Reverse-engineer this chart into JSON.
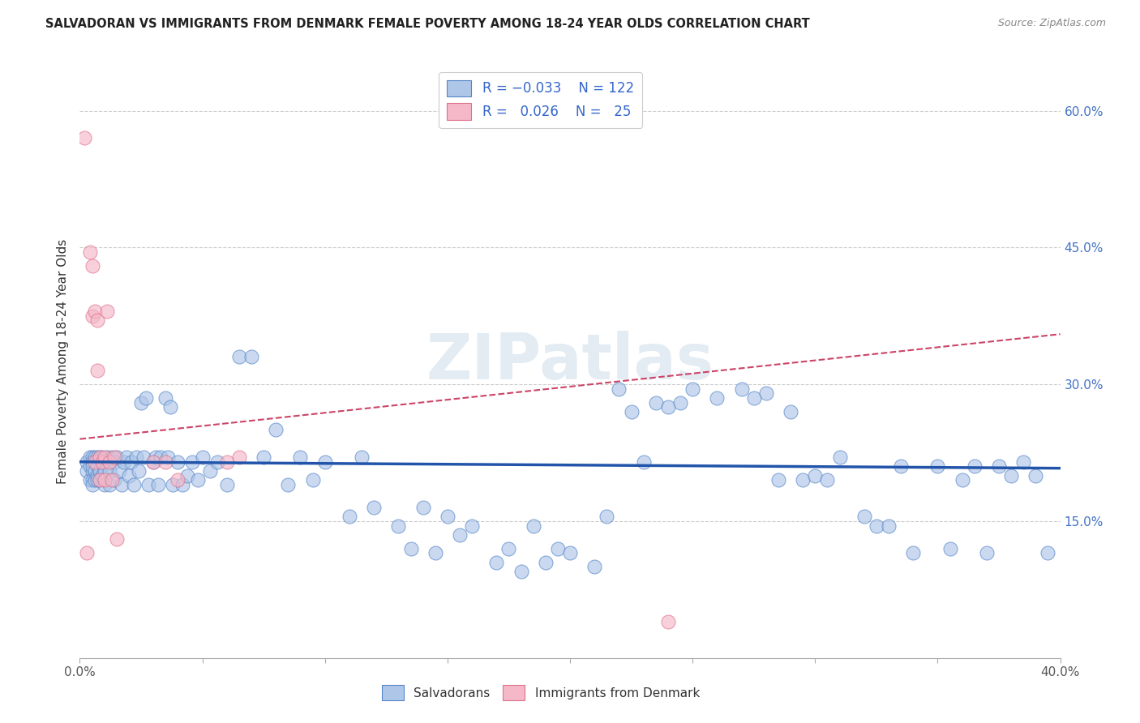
{
  "title": "SALVADORAN VS IMMIGRANTS FROM DENMARK FEMALE POVERTY AMONG 18-24 YEAR OLDS CORRELATION CHART",
  "source": "Source: ZipAtlas.com",
  "ylabel": "Female Poverty Among 18-24 Year Olds",
  "right_yticks": [
    "60.0%",
    "45.0%",
    "30.0%",
    "15.0%"
  ],
  "right_ytick_vals": [
    0.6,
    0.45,
    0.3,
    0.15
  ],
  "legend_blue_R": "-0.033",
  "legend_blue_N": "122",
  "legend_pink_R": "0.026",
  "legend_pink_N": "25",
  "legend_label_blue": "Salvadorans",
  "legend_label_pink": "Immigrants from Denmark",
  "blue_color": "#aec6e8",
  "pink_color": "#f4b8c8",
  "blue_edge_color": "#5585c8",
  "pink_edge_color": "#e0708a",
  "blue_line_color": "#2255aa",
  "pink_line_color": "#cc4466",
  "watermark": "ZIPatlas",
  "xlim": [
    0.0,
    0.4
  ],
  "ylim": [
    0.0,
    0.65
  ],
  "blue_scatter_x": [
    0.003,
    0.003,
    0.004,
    0.004,
    0.004,
    0.005,
    0.005,
    0.005,
    0.005,
    0.005,
    0.005,
    0.006,
    0.006,
    0.006,
    0.007,
    0.007,
    0.007,
    0.007,
    0.008,
    0.008,
    0.008,
    0.009,
    0.009,
    0.01,
    0.01,
    0.01,
    0.011,
    0.012,
    0.012,
    0.013,
    0.014,
    0.014,
    0.015,
    0.016,
    0.017,
    0.018,
    0.019,
    0.02,
    0.021,
    0.022,
    0.023,
    0.024,
    0.025,
    0.026,
    0.027,
    0.028,
    0.03,
    0.031,
    0.032,
    0.033,
    0.035,
    0.036,
    0.037,
    0.038,
    0.04,
    0.042,
    0.044,
    0.046,
    0.048,
    0.05,
    0.053,
    0.056,
    0.06,
    0.065,
    0.07,
    0.075,
    0.08,
    0.085,
    0.09,
    0.095,
    0.1,
    0.11,
    0.115,
    0.12,
    0.13,
    0.135,
    0.14,
    0.145,
    0.15,
    0.155,
    0.16,
    0.17,
    0.175,
    0.18,
    0.185,
    0.19,
    0.195,
    0.2,
    0.21,
    0.215,
    0.22,
    0.225,
    0.23,
    0.235,
    0.24,
    0.245,
    0.25,
    0.26,
    0.27,
    0.275,
    0.28,
    0.285,
    0.29,
    0.295,
    0.3,
    0.305,
    0.31,
    0.32,
    0.325,
    0.33,
    0.335,
    0.34,
    0.35,
    0.355,
    0.36,
    0.365,
    0.37,
    0.375,
    0.38,
    0.385,
    0.39,
    0.395
  ],
  "blue_scatter_y": [
    0.215,
    0.205,
    0.22,
    0.195,
    0.21,
    0.22,
    0.215,
    0.205,
    0.195,
    0.21,
    0.19,
    0.22,
    0.205,
    0.195,
    0.22,
    0.21,
    0.2,
    0.195,
    0.22,
    0.205,
    0.195,
    0.22,
    0.2,
    0.215,
    0.205,
    0.19,
    0.22,
    0.205,
    0.19,
    0.22,
    0.215,
    0.195,
    0.22,
    0.205,
    0.19,
    0.215,
    0.22,
    0.2,
    0.215,
    0.19,
    0.22,
    0.205,
    0.28,
    0.22,
    0.285,
    0.19,
    0.215,
    0.22,
    0.19,
    0.22,
    0.285,
    0.22,
    0.275,
    0.19,
    0.215,
    0.19,
    0.2,
    0.215,
    0.195,
    0.22,
    0.205,
    0.215,
    0.19,
    0.33,
    0.33,
    0.22,
    0.25,
    0.19,
    0.22,
    0.195,
    0.215,
    0.155,
    0.22,
    0.165,
    0.145,
    0.12,
    0.165,
    0.115,
    0.155,
    0.135,
    0.145,
    0.105,
    0.12,
    0.095,
    0.145,
    0.105,
    0.12,
    0.115,
    0.1,
    0.155,
    0.295,
    0.27,
    0.215,
    0.28,
    0.275,
    0.28,
    0.295,
    0.285,
    0.295,
    0.285,
    0.29,
    0.195,
    0.27,
    0.195,
    0.2,
    0.195,
    0.22,
    0.155,
    0.145,
    0.145,
    0.21,
    0.115,
    0.21,
    0.12,
    0.195,
    0.21,
    0.115,
    0.21,
    0.2,
    0.215,
    0.2,
    0.115
  ],
  "pink_scatter_x": [
    0.002,
    0.003,
    0.004,
    0.005,
    0.005,
    0.006,
    0.006,
    0.007,
    0.007,
    0.008,
    0.008,
    0.009,
    0.01,
    0.01,
    0.011,
    0.012,
    0.013,
    0.014,
    0.015,
    0.03,
    0.035,
    0.04,
    0.06,
    0.065,
    0.24
  ],
  "pink_scatter_y": [
    0.57,
    0.115,
    0.445,
    0.43,
    0.375,
    0.38,
    0.215,
    0.37,
    0.315,
    0.22,
    0.195,
    0.215,
    0.22,
    0.195,
    0.38,
    0.215,
    0.195,
    0.22,
    0.13,
    0.215,
    0.215,
    0.195,
    0.215,
    0.22,
    0.04
  ],
  "blue_trend_x": [
    0.0,
    0.4
  ],
  "blue_trend_y": [
    0.215,
    0.208
  ],
  "pink_trend_x": [
    0.0,
    0.4
  ],
  "pink_trend_y": [
    0.24,
    0.355
  ]
}
